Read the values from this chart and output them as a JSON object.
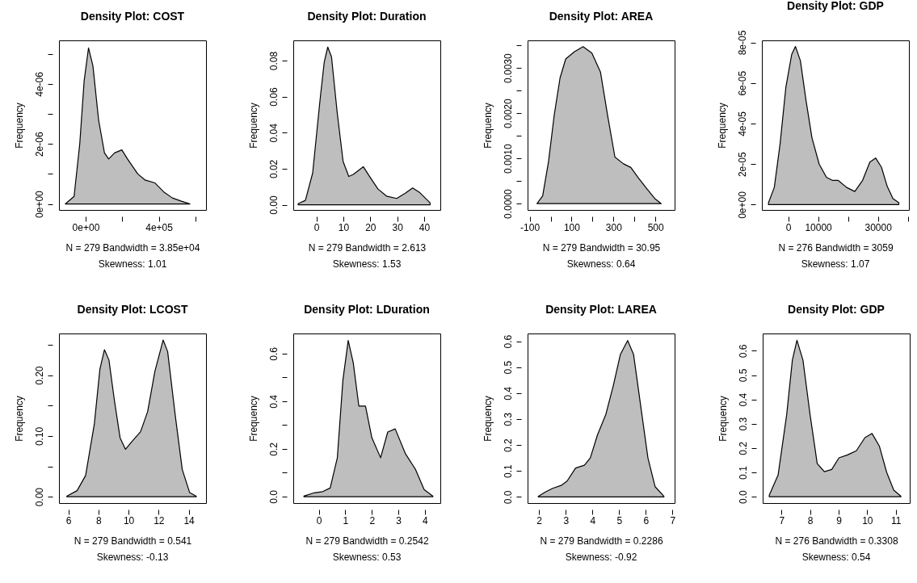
{
  "chart_data": [
    {
      "type": "area",
      "title": "Density Plot: COST",
      "xlabel": "N = 279   Bandwidth = 3.85e+04",
      "subtitle": "Skewness: 1.01",
      "ylabel": "Frequency",
      "color": "#bebebe",
      "x": [
        -110700,
        -63000,
        -32000,
        -8000,
        16000,
        40000,
        71000,
        103000,
        126000,
        158000,
        198000,
        229000,
        285000,
        324000,
        379000,
        427000,
        474000,
        520000,
        570000
      ],
      "values": [
        0,
        2.5e-07,
        2e-06,
        4.1e-06,
        5.2e-06,
        4.6e-06,
        2.8e-06,
        1.7e-06,
        1.5e-06,
        1.7e-06,
        1.8e-06,
        1.5e-06,
        1e-06,
        8e-07,
        7e-07,
        4e-07,
        2e-07,
        1e-07,
        0
      ],
      "xlim": [
        -145500,
        658000
      ],
      "ylim": [
        -2e-07,
        5.45e-06
      ],
      "xticks": [
        {
          "value": 0,
          "label": "0e+00"
        },
        {
          "value": 200000,
          "label": null
        },
        {
          "value": 400000,
          "label": "4e+05"
        },
        {
          "value": 600000,
          "label": null
        }
      ],
      "yticks": [
        {
          "value": 0,
          "label": "0e+00"
        },
        {
          "value": 1e-06,
          "label": null
        },
        {
          "value": 2e-06,
          "label": "2e-06"
        },
        {
          "value": 3e-06,
          "label": null
        },
        {
          "value": 4e-06,
          "label": "4e-06"
        },
        {
          "value": 5e-06,
          "label": null
        }
      ]
    },
    {
      "type": "area",
      "title": "Density Plot: Duration",
      "xlabel": "N = 279   Bandwidth = 2.613",
      "subtitle": "Skewness: 1.53",
      "ylabel": "Frequency",
      "color": "#bebebe",
      "x": [
        -6.8,
        -4.1,
        -1.4,
        1.3,
        2.9,
        4.2,
        5.6,
        7.7,
        9.9,
        12.0,
        13.7,
        17.4,
        19.6,
        22.8,
        26.0,
        29.8,
        33.0,
        35.7,
        38.4,
        42.2
      ],
      "values": [
        0.0006,
        0.0024,
        0.0176,
        0.0576,
        0.0792,
        0.0875,
        0.082,
        0.0512,
        0.024,
        0.0157,
        0.0168,
        0.0211,
        0.016,
        0.0088,
        0.0048,
        0.0035,
        0.0064,
        0.0093,
        0.0067,
        0.0011
      ],
      "xlim": [
        -8.6,
        46.0
      ],
      "ylim": [
        -0.0029,
        0.0912
      ],
      "xticks": [
        0,
        10,
        20,
        30,
        40
      ],
      "yticks": [
        {
          "value": 0,
          "label": "0.00"
        },
        {
          "value": 0.02,
          "label": "0.02"
        },
        {
          "value": 0.04,
          "label": "0.04"
        },
        {
          "value": 0.06,
          "label": "0.06"
        },
        {
          "value": 0.08,
          "label": "0.08"
        }
      ]
    },
    {
      "type": "area",
      "title": "Density Plot: AREA",
      "xlabel": "N = 279   Bandwidth = 30.95",
      "subtitle": "Skewness: 0.64",
      "ylabel": "Frequency",
      "color": "#bebebe",
      "x": [
        -65,
        -38,
        -10,
        17,
        45,
        72,
        114,
        155,
        197,
        238,
        272,
        307,
        348,
        383,
        417,
        459,
        500,
        528
      ],
      "values": [
        0,
        0.00017,
        0.00093,
        0.00195,
        0.00278,
        0.0032,
        0.00336,
        0.00347,
        0.00333,
        0.00291,
        0.00195,
        0.00103,
        0.00088,
        0.0008,
        0.00058,
        0.00033,
        0.0001,
        0
      ],
      "xlim": [
        -110,
        592
      ],
      "ylim": [
        -0.00014,
        0.00361
      ],
      "xticks": [
        -100,
        {
          "value": 0,
          "label": null
        },
        100,
        {
          "value": 200,
          "label": null
        },
        300,
        {
          "value": 400,
          "label": null
        },
        500
      ],
      "yticks": [
        {
          "value": 0,
          "label": "0.0000"
        },
        {
          "value": 0.0005,
          "label": null
        },
        {
          "value": 0.001,
          "label": "0.0010"
        },
        {
          "value": 0.0015,
          "label": null
        },
        {
          "value": 0.002,
          "label": "0.0020"
        },
        {
          "value": 0.0025,
          "label": null
        },
        {
          "value": 0.003,
          "label": "0.0030"
        },
        {
          "value": 0.0035,
          "label": null
        }
      ]
    },
    {
      "type": "area",
      "title": "Density Plot: GDP",
      "xlabel": "N = 276   Bandwidth = 3059",
      "subtitle": "Skewness: 1.07",
      "ylabel": "Frequency",
      "color": "#bebebe",
      "x": [
        -6580,
        -4650,
        -2710,
        -770,
        1160,
        2420,
        4070,
        6000,
        7940,
        10360,
        12780,
        14710,
        16650,
        19550,
        22260,
        24880,
        27300,
        29230,
        31170,
        33100,
        35040,
        36980
      ],
      "values": [
        1e-06,
        8.5e-06,
        3e-05,
        5.8e-05,
        7.4e-05,
        7.8e-05,
        7.1e-05,
        5.1e-05,
        3.3e-05,
        2e-05,
        1.35e-05,
        1.2e-05,
        1.2e-05,
        8.5e-06,
        6.5e-06,
        1.2e-05,
        2.1e-05,
        2.3e-05,
        1.85e-05,
        9e-06,
        3e-06,
        1e-06
      ],
      "xlim": [
        -8800,
        40360
      ],
      "ylim": [
        -2.6e-06,
        8.1e-05
      ],
      "xticks": [
        0,
        10000,
        {
          "value": 20000,
          "label": null
        },
        30000,
        {
          "value": 40000,
          "label": null
        }
      ],
      "yticks": [
        {
          "value": 0,
          "label": "0e+00"
        },
        {
          "value": 2e-05,
          "label": "2e-05"
        },
        {
          "value": 4e-05,
          "label": "4e-05"
        },
        {
          "value": 6e-05,
          "label": "6e-05"
        },
        {
          "value": 8e-05,
          "label": "8e-05"
        }
      ]
    },
    {
      "type": "area",
      "title": "Density Plot: LCOST",
      "xlabel": "N = 279   Bandwidth = 0.541",
      "subtitle": "Skewness: -0.13",
      "ylabel": "Frequency",
      "color": "#bebebe",
      "x": [
        5.9,
        6.58,
        7.15,
        7.73,
        8.1,
        8.4,
        8.7,
        9.06,
        9.44,
        9.8,
        10.2,
        10.8,
        11.27,
        11.75,
        12.3,
        12.6,
        13.1,
        13.57,
        14.06,
        14.5
      ],
      "values": [
        0.001,
        0.01,
        0.035,
        0.12,
        0.21,
        0.242,
        0.225,
        0.159,
        0.097,
        0.078,
        0.09,
        0.107,
        0.14,
        0.206,
        0.258,
        0.239,
        0.135,
        0.045,
        0.007,
        0.001
      ],
      "xlim": [
        5.38,
        15.15
      ],
      "ylim": [
        -0.0104,
        0.2687
      ],
      "xticks": [
        6,
        8,
        10,
        12,
        14
      ],
      "yticks": [
        {
          "value": 0,
          "label": "0.00"
        },
        {
          "value": 0.05,
          "label": null
        },
        {
          "value": 0.1,
          "label": "0.10"
        },
        {
          "value": 0.15,
          "label": null
        },
        {
          "value": 0.2,
          "label": "0.20"
        },
        {
          "value": 0.25,
          "label": null
        }
      ]
    },
    {
      "type": "area",
      "title": "Density Plot: LDuration",
      "xlabel": "N = 279   Bandwidth = 0.2542",
      "subtitle": "Skewness: 0.53",
      "ylabel": "Frequency",
      "color": "#bebebe",
      "x": [
        -0.56,
        -0.17,
        0.15,
        0.43,
        0.7,
        0.91,
        1.11,
        1.3,
        1.51,
        1.76,
        2.0,
        2.33,
        2.6,
        2.88,
        3.26,
        3.64,
        3.97,
        4.3
      ],
      "values": [
        0.002,
        0.016,
        0.021,
        0.036,
        0.163,
        0.489,
        0.655,
        0.561,
        0.38,
        0.38,
        0.247,
        0.163,
        0.271,
        0.284,
        0.181,
        0.115,
        0.03,
        0.002
      ],
      "xlim": [
        -0.96,
        4.58
      ],
      "ylim": [
        -0.027,
        0.684
      ],
      "xticks": [
        0,
        1,
        2,
        3,
        4
      ],
      "yticks": [
        {
          "value": 0,
          "label": "0.0"
        },
        {
          "value": 0.1,
          "label": null
        },
        {
          "value": 0.2,
          "label": "0.2"
        },
        {
          "value": 0.3,
          "label": null
        },
        {
          "value": 0.4,
          "label": "0.4"
        },
        {
          "value": 0.5,
          "label": null
        },
        {
          "value": 0.6,
          "label": "0.6"
        }
      ]
    },
    {
      "type": "area",
      "title": "Density Plot: LAREA",
      "xlabel": "N = 279   Bandwidth = 0.2286",
      "subtitle": "Skewness: -0.92",
      "ylabel": "Frequency",
      "color": "#bebebe",
      "x": [
        1.97,
        2.24,
        2.51,
        2.83,
        3.05,
        3.37,
        3.7,
        3.92,
        4.19,
        4.5,
        4.78,
        5.05,
        5.32,
        5.54,
        5.81,
        6.08,
        6.35,
        6.68
      ],
      "values": [
        0.002,
        0.019,
        0.033,
        0.044,
        0.061,
        0.111,
        0.122,
        0.15,
        0.239,
        0.317,
        0.428,
        0.55,
        0.603,
        0.55,
        0.35,
        0.15,
        0.039,
        0.002
      ],
      "xlim": [
        1.57,
        7.08
      ],
      "ylim": [
        -0.024,
        0.63
      ],
      "xticks": [
        2,
        3,
        4,
        5,
        6,
        7
      ],
      "yticks": [
        {
          "value": 0,
          "label": "0.0"
        },
        {
          "value": 0.1,
          "label": "0.1"
        },
        {
          "value": 0.2,
          "label": "0.2"
        },
        {
          "value": 0.3,
          "label": "0.3"
        },
        {
          "value": 0.4,
          "label": "0.4"
        },
        {
          "value": 0.5,
          "label": "0.5"
        },
        {
          "value": 0.6,
          "label": "0.6"
        }
      ]
    },
    {
      "type": "area",
      "title": "Density Plot: GDP",
      "xlabel": "N = 276   Bandwidth = 0.3308",
      "subtitle": "Skewness: 0.54",
      "ylabel": "Frequency",
      "color": "#bebebe",
      "x": [
        6.57,
        6.88,
        7.18,
        7.38,
        7.54,
        7.75,
        8.0,
        8.25,
        8.5,
        8.76,
        9.01,
        9.31,
        9.62,
        9.92,
        10.17,
        10.43,
        10.68,
        10.93,
        11.18
      ],
      "values": [
        0.006,
        0.089,
        0.337,
        0.562,
        0.643,
        0.562,
        0.337,
        0.136,
        0.103,
        0.112,
        0.16,
        0.172,
        0.189,
        0.243,
        0.26,
        0.207,
        0.101,
        0.027,
        0.002
      ],
      "xlim": [
        6.34,
        11.49
      ],
      "ylim": [
        -0.026,
        0.671
      ],
      "xticks": [
        7,
        8,
        9,
        10,
        11
      ],
      "yticks": [
        {
          "value": 0,
          "label": "0.0"
        },
        {
          "value": 0.1,
          "label": "0.1"
        },
        {
          "value": 0.2,
          "label": "0.2"
        },
        {
          "value": 0.3,
          "label": "0.3"
        },
        {
          "value": 0.4,
          "label": "0.4"
        },
        {
          "value": 0.5,
          "label": "0.5"
        },
        {
          "value": 0.6,
          "label": "0.6"
        }
      ]
    }
  ]
}
